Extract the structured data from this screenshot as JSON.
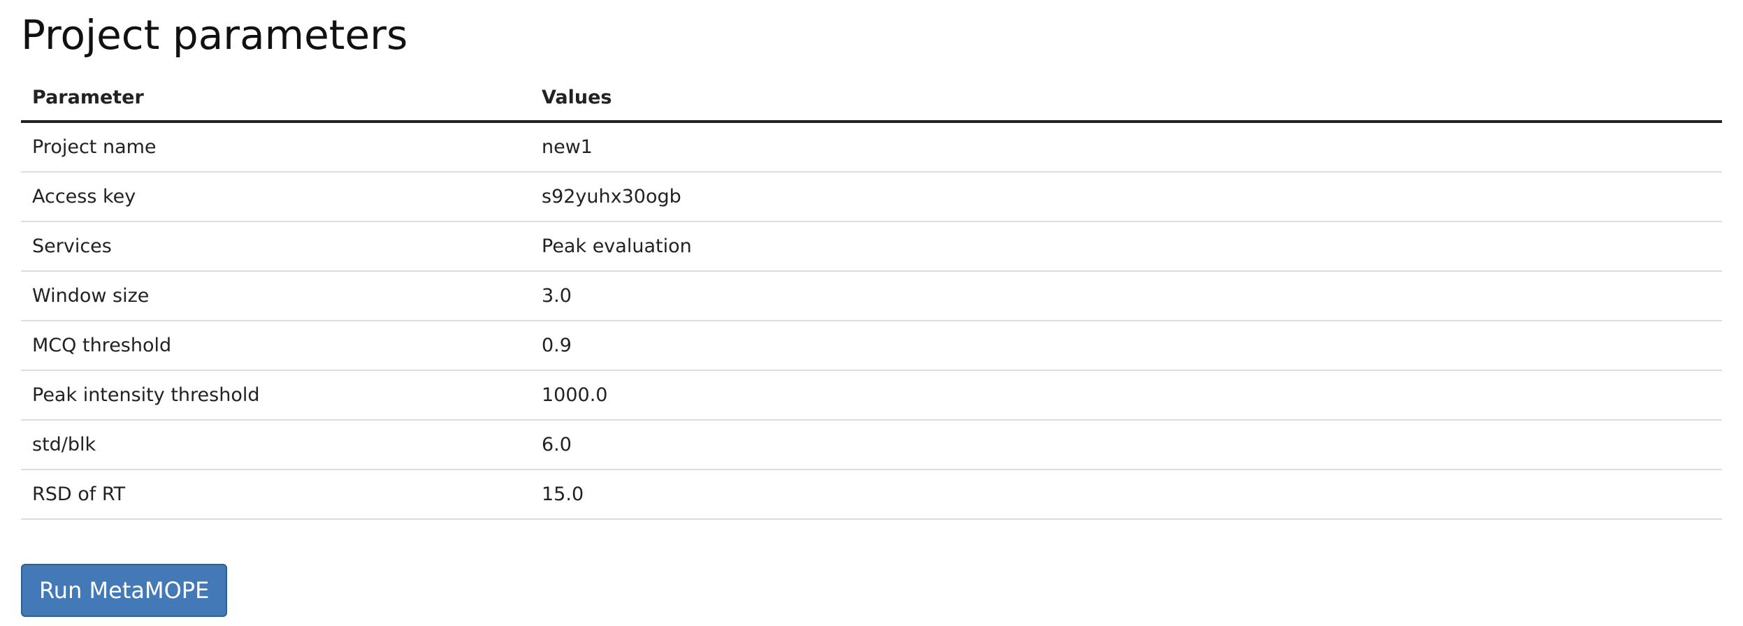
{
  "page": {
    "title": "Project parameters"
  },
  "table": {
    "headers": {
      "parameter": "Parameter",
      "values": "Values"
    },
    "rows": [
      {
        "parameter": "Project name",
        "value": "new1"
      },
      {
        "parameter": "Access key",
        "value": "s92yuhx30ogb"
      },
      {
        "parameter": "Services",
        "value": "Peak evaluation"
      },
      {
        "parameter": "Window size",
        "value": "3.0"
      },
      {
        "parameter": "MCQ threshold",
        "value": "0.9"
      },
      {
        "parameter": "Peak intensity threshold",
        "value": "1000.0"
      },
      {
        "parameter": "std/blk",
        "value": "6.0"
      },
      {
        "parameter": "RSD of RT",
        "value": "15.0"
      }
    ]
  },
  "actions": {
    "run_label": "Run MetaMOPE"
  },
  "colors": {
    "button_bg": "#4479b7",
    "button_border": "#2e6096",
    "header_rule": "#222222",
    "row_rule": "#dddddd"
  }
}
